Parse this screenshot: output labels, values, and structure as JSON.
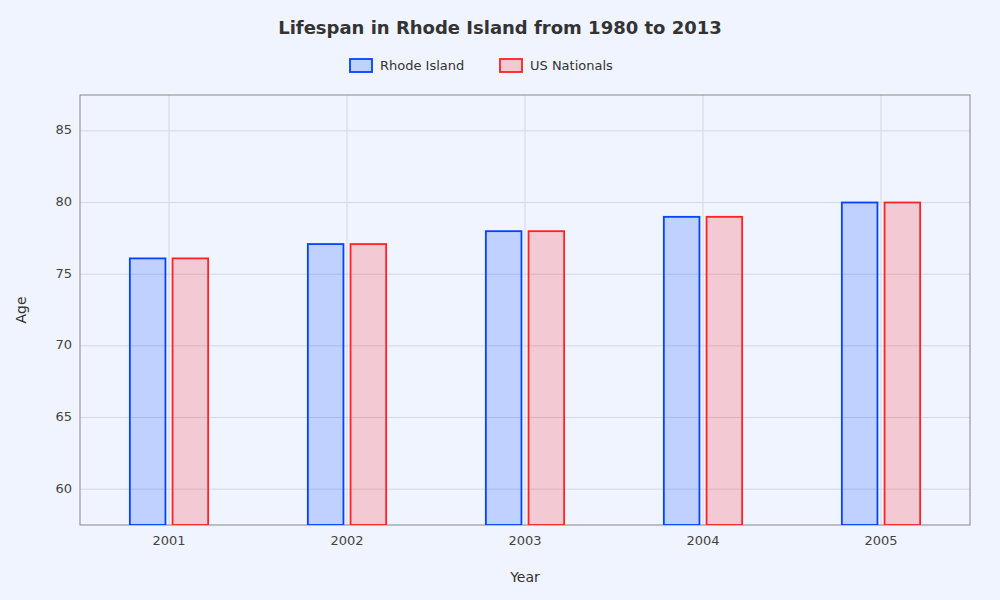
{
  "chart_data": {
    "type": "bar",
    "title": "Lifespan in Rhode Island from 1980 to 2013",
    "x_label": "Year",
    "y_label": "Age",
    "categories": [
      "2001",
      "2002",
      "2003",
      "2004",
      "2005"
    ],
    "series": [
      {
        "name": "Rhode Island",
        "color": "#0044ff",
        "values": [
          76.1,
          77.1,
          78.0,
          79.0,
          80.0
        ]
      },
      {
        "name": "US Nationals",
        "color": "#ff2222",
        "values": [
          76.1,
          77.1,
          78.0,
          79.0,
          80.0
        ]
      }
    ],
    "ylim": [
      57.5,
      87.5
    ],
    "yticks": [
      60,
      65,
      70,
      75,
      80,
      85
    ],
    "grid": true,
    "legend": "top"
  }
}
